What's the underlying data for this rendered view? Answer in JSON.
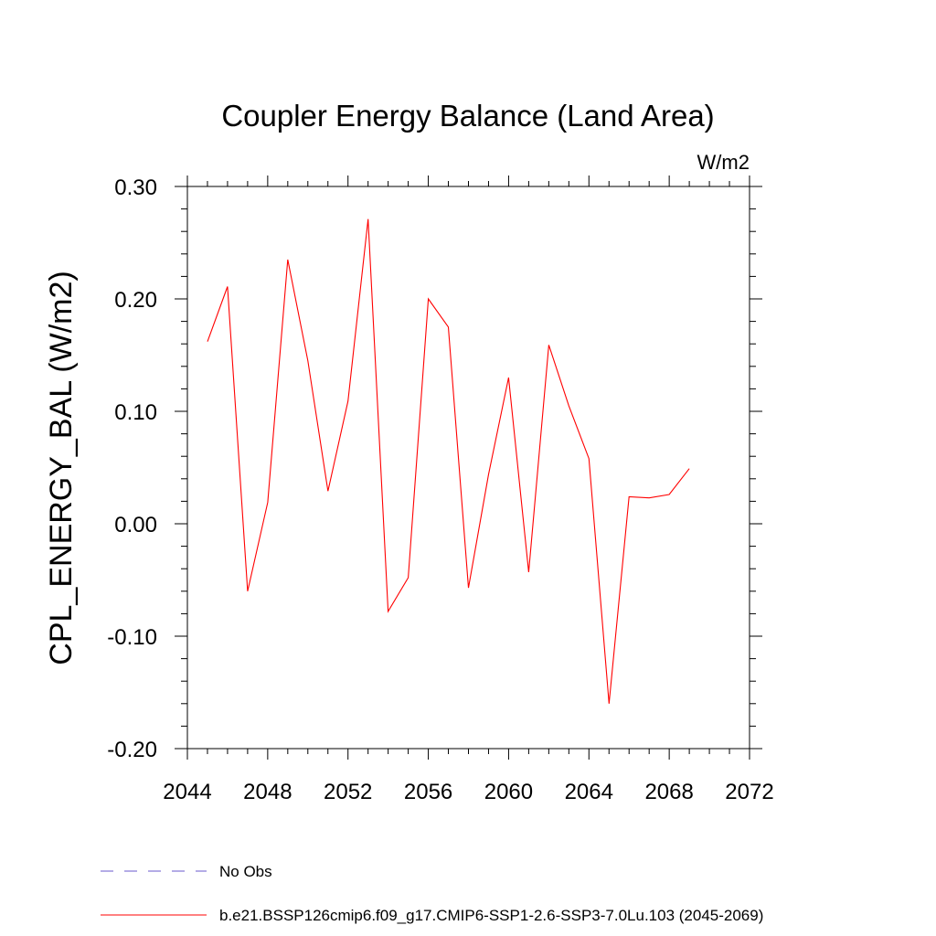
{
  "chart_data": {
    "type": "line",
    "title": "Coupler Energy Balance (Land Area)",
    "units": "W/m2",
    "xlabel": "",
    "ylabel": "CPL_ENERGY_BAL  (W/m2)",
    "xlim": [
      2044,
      2072
    ],
    "ylim": [
      -0.2,
      0.3
    ],
    "x_ticks": [
      2044,
      2048,
      2052,
      2056,
      2060,
      2064,
      2068,
      2072
    ],
    "x_tick_labels": [
      "2044",
      "2048",
      "2052",
      "2056",
      "2060",
      "2064",
      "2068",
      "2072"
    ],
    "y_ticks": [
      -0.2,
      -0.1,
      0.0,
      0.1,
      0.2,
      0.3
    ],
    "y_tick_labels": [
      "-0.20",
      "-0.10",
      "0.00",
      "0.10",
      "0.20",
      "0.30"
    ],
    "grid": false,
    "legend_placement": "bottom",
    "legend": [
      {
        "label": "No Obs",
        "color": "#6a5acd",
        "style": "dashed"
      },
      {
        "label": "b.e21.BSSP126cmip6.f09_g17.CMIP6-SSP1-2.6-SSP3-7.0Lu.103 (2045-2069)",
        "color": "#ff0000",
        "style": "solid"
      }
    ],
    "series": [
      {
        "name": "b.e21.BSSP126cmip6.f09_g17.CMIP6-SSP1-2.6-SSP3-7.0Lu.103 (2045-2069)",
        "color": "#ff0000",
        "x": [
          2045,
          2046,
          2047,
          2048,
          2049,
          2050,
          2051,
          2052,
          2053,
          2054,
          2055,
          2056,
          2057,
          2058,
          2059,
          2060,
          2061,
          2062,
          2063,
          2064,
          2065,
          2066,
          2067,
          2068,
          2069
        ],
        "y": [
          0.162,
          0.211,
          -0.06,
          0.019,
          0.235,
          0.145,
          0.029,
          0.109,
          0.271,
          -0.078,
          -0.048,
          0.2,
          0.175,
          -0.057,
          0.044,
          0.13,
          -0.043,
          0.159,
          0.105,
          0.058,
          -0.16,
          0.024,
          0.023,
          0.026,
          0.049
        ]
      }
    ]
  }
}
